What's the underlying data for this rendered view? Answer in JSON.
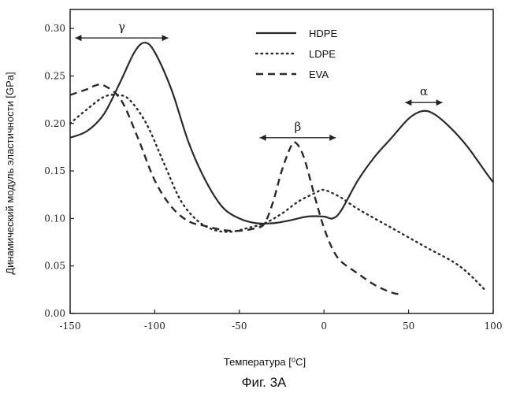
{
  "chart_data": {
    "type": "line",
    "xlabel": "Температура [⁰C]",
    "ylabel": "Динамический модуль эластичности [GPa]",
    "xlim": [
      -150,
      100
    ],
    "ylim": [
      0.0,
      0.32
    ],
    "x_ticks": [
      -150,
      -100,
      -50,
      0,
      50,
      100
    ],
    "x_tick_labels": [
      "-150",
      "-100",
      "-50",
      "0",
      "50",
      "100"
    ],
    "y_ticks": [
      0.0,
      0.05,
      0.1,
      0.15,
      0.2,
      0.25,
      0.3
    ],
    "y_tick_labels": [
      "0.00",
      "0.05",
      "0.10",
      "0.15",
      "0.20",
      "0.25",
      "0.30"
    ],
    "grid": false,
    "legend_position": "top-right",
    "series": [
      {
        "name": "HDPE",
        "style": "solid",
        "x": [
          -150,
          -140,
          -130,
          -120,
          -112,
          -106,
          -100,
          -90,
          -80,
          -70,
          -60,
          -50,
          -40,
          -30,
          -20,
          -10,
          0,
          5,
          10,
          20,
          30,
          40,
          50,
          58,
          65,
          75,
          85,
          95,
          100
        ],
        "y": [
          0.185,
          0.192,
          0.21,
          0.245,
          0.275,
          0.285,
          0.275,
          0.235,
          0.18,
          0.14,
          0.112,
          0.1,
          0.095,
          0.095,
          0.098,
          0.102,
          0.102,
          0.1,
          0.108,
          0.14,
          0.165,
          0.185,
          0.205,
          0.213,
          0.21,
          0.195,
          0.175,
          0.15,
          0.138
        ]
      },
      {
        "name": "LDPE",
        "style": "dotted",
        "x": [
          -150,
          -140,
          -130,
          -122,
          -115,
          -105,
          -95,
          -85,
          -75,
          -65,
          -55,
          -45,
          -35,
          -25,
          -15,
          -5,
          0,
          10,
          20,
          40,
          60,
          80,
          95
        ],
        "y": [
          0.2,
          0.215,
          0.228,
          0.23,
          0.225,
          0.2,
          0.16,
          0.12,
          0.098,
          0.088,
          0.086,
          0.09,
          0.095,
          0.105,
          0.118,
          0.127,
          0.13,
          0.122,
          0.11,
          0.09,
          0.07,
          0.05,
          0.025
        ]
      },
      {
        "name": "EVA",
        "style": "dashed",
        "x": [
          -150,
          -140,
          -135,
          -130,
          -120,
          -110,
          -100,
          -90,
          -80,
          -70,
          -60,
          -50,
          -40,
          -35,
          -30,
          -25,
          -20,
          -17,
          -12,
          -5,
          0,
          5,
          10,
          20,
          30,
          40,
          46
        ],
        "y": [
          0.23,
          0.236,
          0.24,
          0.24,
          0.225,
          0.185,
          0.14,
          0.112,
          0.097,
          0.092,
          0.088,
          0.087,
          0.09,
          0.095,
          0.118,
          0.15,
          0.174,
          0.18,
          0.165,
          0.12,
          0.09,
          0.068,
          0.055,
          0.042,
          0.03,
          0.022,
          0.02
        ]
      }
    ],
    "annotations": [
      {
        "label": "γ",
        "x_start": -147,
        "x_end": -92,
        "y": 0.29
      },
      {
        "label": "β",
        "x_start": -38,
        "x_end": 7,
        "y": 0.185
      },
      {
        "label": "α",
        "x_start": 48,
        "x_end": 70,
        "y": 0.222
      }
    ]
  },
  "caption": "Фиг. 3А"
}
